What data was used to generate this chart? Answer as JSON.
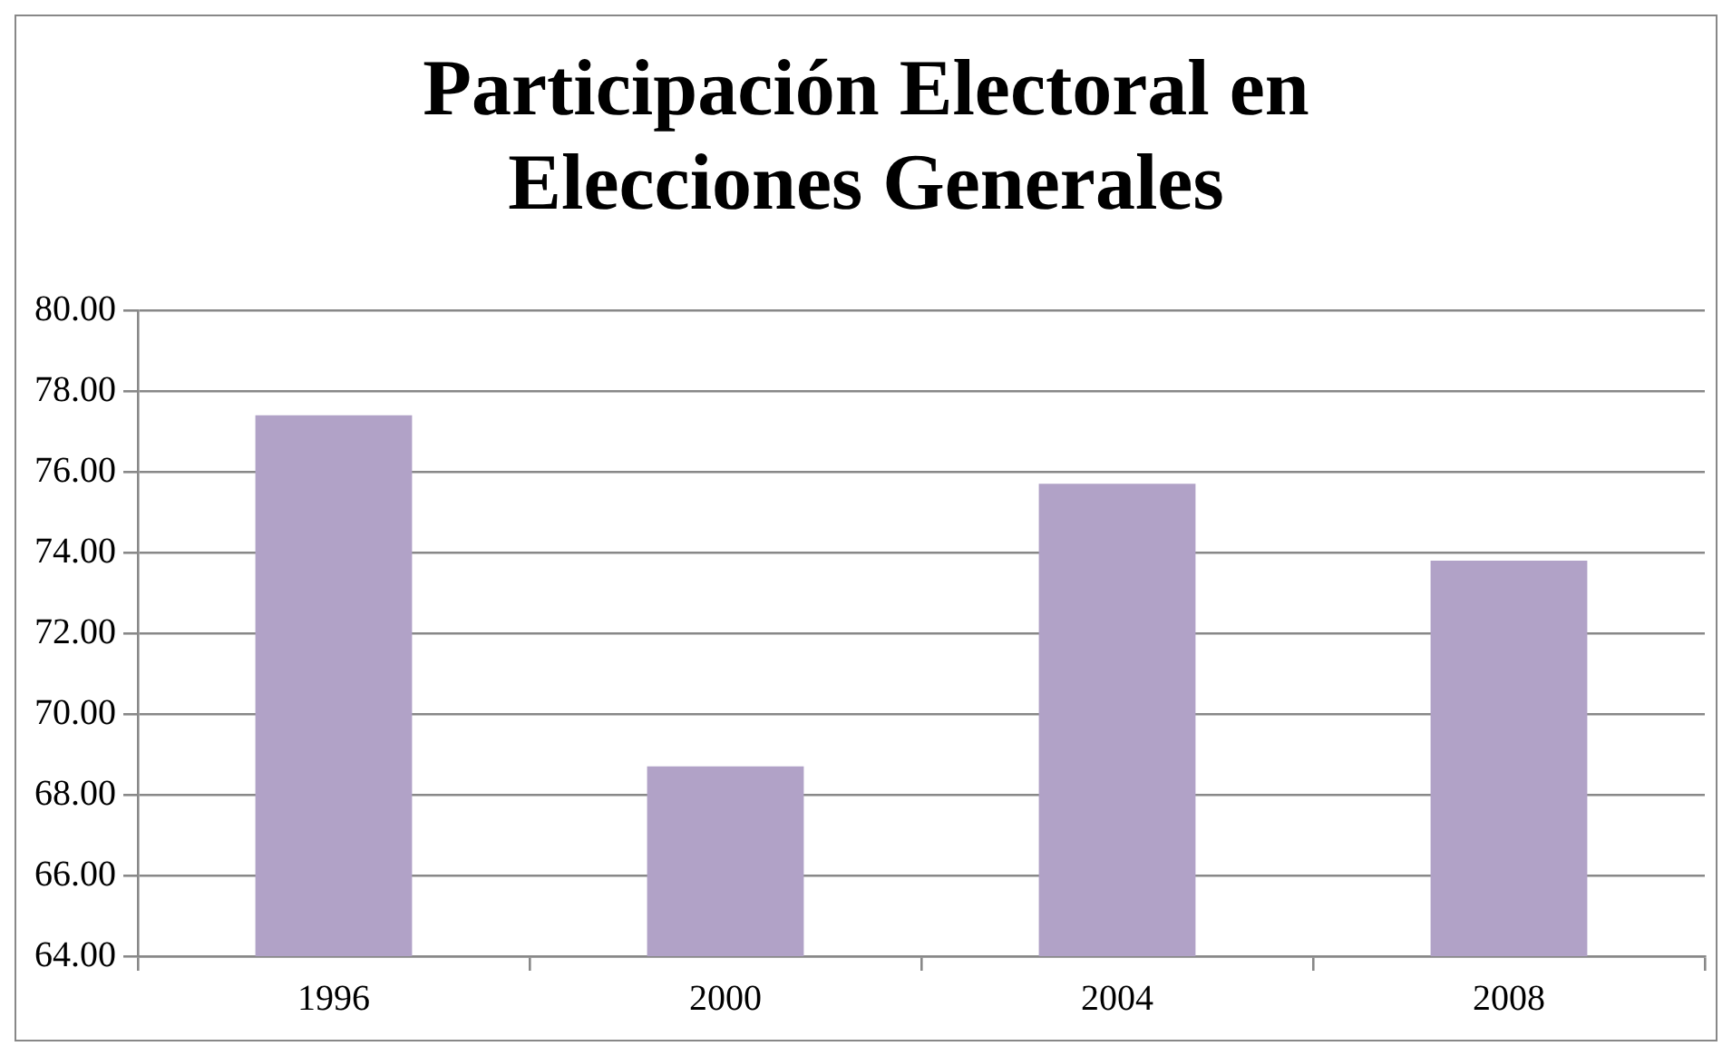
{
  "chart_data": {
    "type": "bar",
    "title": "Participación Electoral en Elecciones Generales",
    "categories": [
      "1996",
      "2000",
      "2004",
      "2008"
    ],
    "values": [
      77.4,
      68.7,
      75.7,
      73.8
    ],
    "color": "#b1a2c7",
    "ylim": [
      64,
      80
    ],
    "yticks": [
      {
        "value": 64,
        "label": "64.00"
      },
      {
        "value": 66,
        "label": "66.00"
      },
      {
        "value": 68,
        "label": "68.00"
      },
      {
        "value": 70,
        "label": "70.00"
      },
      {
        "value": 72,
        "label": "72.00"
      },
      {
        "value": 74,
        "label": "74.00"
      },
      {
        "value": 76,
        "label": "76.00"
      },
      {
        "value": 78,
        "label": "78.00"
      },
      {
        "value": 80,
        "label": "80.00"
      }
    ],
    "grid": "y"
  }
}
